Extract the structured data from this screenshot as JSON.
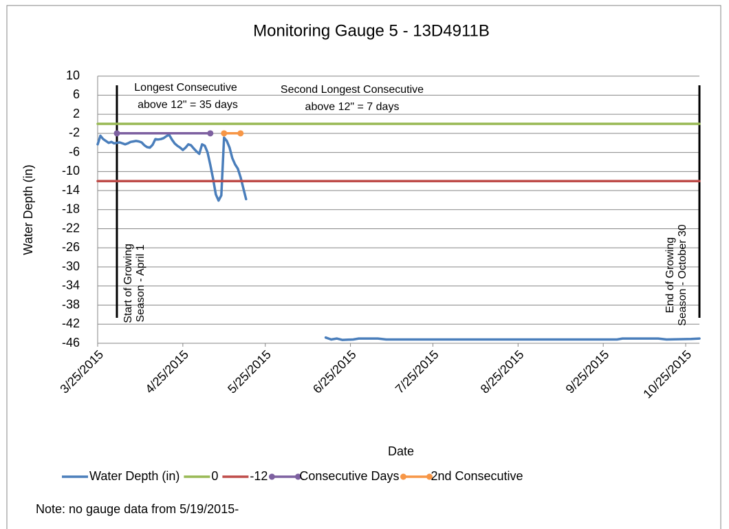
{
  "chart_data": {
    "type": "line",
    "title": "Monitoring Gauge 5 - 13D4911B",
    "x_label": "Date",
    "y_label": "Water Depth (in)",
    "xlim": [
      "3/25/2015",
      "10/30/2015"
    ],
    "xticks": [
      "3/25/2015",
      "4/25/2015",
      "5/25/2015",
      "6/25/2015",
      "7/25/2015",
      "8/25/2015",
      "9/25/2015",
      "10/25/2015"
    ],
    "ylim": [
      -46,
      10
    ],
    "yticks": [
      10,
      6,
      2,
      -2,
      -6,
      -10,
      -14,
      -18,
      -22,
      -26,
      -30,
      -34,
      -38,
      -42,
      -46
    ],
    "grid": true,
    "series": [
      {
        "name": "Water Depth (in)",
        "color": "#4a7ebb",
        "marker": false,
        "x": [
          "3/25/2015",
          "3/26/2015",
          "3/27/2015",
          "3/28/2015",
          "3/29/2015",
          "3/30/2015",
          "3/31/2015",
          "4/1/2015",
          "4/2/2015",
          "4/3/2015",
          "4/4/2015",
          "4/5/2015",
          "4/6/2015",
          "4/7/2015",
          "4/8/2015",
          "4/9/2015",
          "4/10/2015",
          "4/11/2015",
          "4/12/2015",
          "4/13/2015",
          "4/14/2015",
          "4/15/2015",
          "4/16/2015",
          "4/17/2015",
          "4/18/2015",
          "4/19/2015",
          "4/20/2015",
          "4/21/2015",
          "4/22/2015",
          "4/23/2015",
          "4/24/2015",
          "4/25/2015",
          "4/26/2015",
          "4/27/2015",
          "4/28/2015",
          "4/29/2015",
          "4/30/2015",
          "5/1/2015",
          "5/2/2015",
          "5/3/2015",
          "5/4/2015",
          "5/5/2015",
          "5/6/2015",
          "5/7/2015",
          "5/8/2015",
          "5/9/2015",
          "5/10/2015",
          "5/11/2015",
          "5/12/2015",
          "5/13/2015",
          "5/14/2015",
          "5/15/2015",
          "5/16/2015",
          "5/17/2015",
          "5/18/2015",
          "5/19/2015",
          "6/16/2015",
          "6/18/2015",
          "6/20/2015",
          "6/22/2015",
          "6/26/2015",
          "6/28/2015",
          "7/5/2015",
          "7/8/2015",
          "7/20/2015",
          "8/5/2015",
          "8/20/2015",
          "9/5/2015",
          "9/20/2015",
          "9/30/2015",
          "10/2/2015",
          "10/15/2015",
          "10/18/2015",
          "10/27/2015",
          "10/30/2015"
        ],
        "values": [
          -4.3,
          -2.5,
          -3.2,
          -3.6,
          -4,
          -3.8,
          -4.1,
          -4,
          -3.9,
          -4.1,
          -4.3,
          -4.1,
          -3.8,
          -3.7,
          -3.6,
          -3.7,
          -3.9,
          -4.5,
          -4.9,
          -5,
          -4.4,
          -3.2,
          -3.3,
          -3.2,
          -3,
          -2.6,
          -2.3,
          -3.3,
          -4.1,
          -4.6,
          -5,
          -5.5,
          -5,
          -4.3,
          -4.5,
          -5.2,
          -5.8,
          -6.3,
          -4.3,
          -4.6,
          -6,
          -8.6,
          -11.5,
          -14.8,
          -16.1,
          -15,
          -2.9,
          -3.6,
          -5,
          -7.2,
          -8.5,
          -9.4,
          -11.2,
          -13.5,
          -15.8,
          null,
          -44.8,
          -45.2,
          -45,
          -45.3,
          -45.2,
          -45,
          -45,
          -45.2,
          -45.2,
          -45.2,
          -45.2,
          -45.2,
          -45.2,
          -45.2,
          -45,
          -45,
          -45.2,
          -45.1,
          -45
        ]
      },
      {
        "name": "0",
        "color": "#98b954",
        "marker": false,
        "x": [
          "3/25/2015",
          "10/30/2015"
        ],
        "values": [
          0,
          0
        ]
      },
      {
        "name": "-12",
        "color": "#be4b48",
        "marker": false,
        "x": [
          "3/25/2015",
          "10/30/2015"
        ],
        "values": [
          -12,
          -12
        ]
      },
      {
        "name": "Consecutive Days",
        "color": "#7d60a0",
        "marker": true,
        "x": [
          "4/1/2015",
          "5/5/2015"
        ],
        "values": [
          -2,
          -2
        ]
      },
      {
        "name": "2nd Consecutive",
        "color": "#f79646",
        "marker": true,
        "x": [
          "5/10/2015",
          "5/16/2015"
        ],
        "values": [
          -2,
          -2
        ]
      }
    ],
    "annotations": [
      {
        "lines": [
          "Longest Consecutive",
          "above 12\" = 35 days"
        ]
      },
      {
        "lines": [
          "Second Longest Consecutive",
          "above 12\" = 7 days"
        ]
      }
    ],
    "vertical_lines": [
      {
        "x": "4/1/2015",
        "label": [
          "Start of Growing",
          "Season - April 1"
        ]
      },
      {
        "x": "10/30/2015",
        "label": [
          "End of Growing",
          "Season - October 30"
        ]
      }
    ],
    "note": "Note: no gauge data from 5/19/2015-"
  }
}
